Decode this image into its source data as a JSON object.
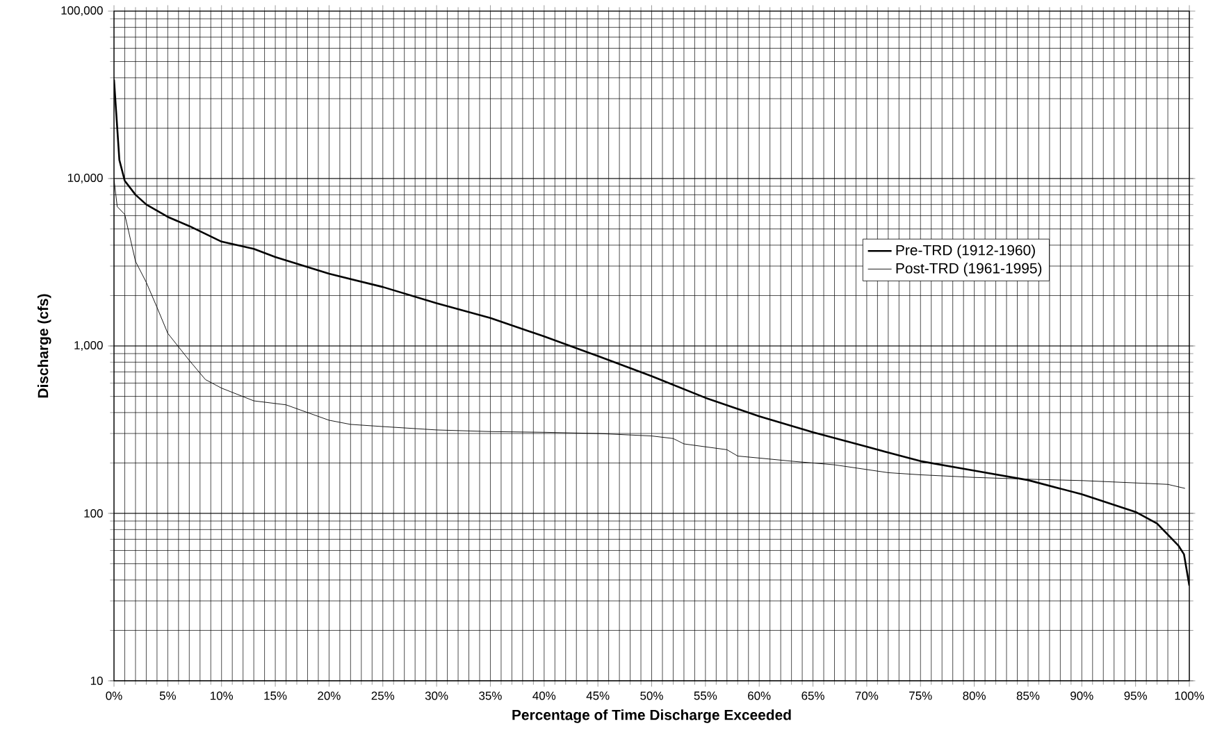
{
  "chart_data": {
    "type": "line",
    "xlabel": "Percentage of Time Discharge Exceeded",
    "ylabel": "Discharge (cfs)",
    "log": "y",
    "grid": true,
    "legend": "right",
    "marker": "none",
    "line_style": "solid",
    "xlim": [
      0,
      100
    ],
    "ylim": [
      10,
      100000
    ],
    "xticks": [
      {
        "value": 0,
        "label": "0%"
      },
      {
        "value": 5,
        "label": "5%"
      },
      {
        "value": 10,
        "label": "10%"
      },
      {
        "value": 15,
        "label": "15%"
      },
      {
        "value": 20,
        "label": "20%"
      },
      {
        "value": 25,
        "label": "25%"
      },
      {
        "value": 30,
        "label": "30%"
      },
      {
        "value": 35,
        "label": "35%"
      },
      {
        "value": 40,
        "label": "40%"
      },
      {
        "value": 45,
        "label": "45%"
      },
      {
        "value": 50,
        "label": "50%"
      },
      {
        "value": 55,
        "label": "55%"
      },
      {
        "value": 60,
        "label": "60%"
      },
      {
        "value": 65,
        "label": "65%"
      },
      {
        "value": 70,
        "label": "70%"
      },
      {
        "value": 75,
        "label": "75%"
      },
      {
        "value": 80,
        "label": "80%"
      },
      {
        "value": 85,
        "label": "85%"
      },
      {
        "value": 90,
        "label": "90%"
      },
      {
        "value": 95,
        "label": "95%"
      },
      {
        "value": 100,
        "label": "100%"
      }
    ],
    "yticks": [
      10,
      100,
      {
        "value": 1000,
        "label": "1,000"
      },
      {
        "value": 10000,
        "label": "10,000"
      },
      {
        "value": 100000,
        "label": "100,000"
      }
    ],
    "series": [
      {
        "name": "Pre-TRD (1912-1960)",
        "color": "#000000",
        "x": [
          0,
          0.5,
          1,
          2,
          3,
          5,
          7,
          10,
          13,
          15,
          20,
          25,
          30,
          35,
          40,
          45,
          50,
          55,
          60,
          65,
          70,
          75,
          80,
          85,
          90,
          95,
          97,
          99,
          99.5,
          100
        ],
        "values": [
          39000,
          12900,
          9700,
          8000,
          7000,
          5900,
          5200,
          4200,
          3800,
          3400,
          2700,
          2250,
          1800,
          1470,
          1140,
          870,
          660,
          490,
          380,
          305,
          250,
          205,
          180,
          158,
          130,
          102,
          87,
          64,
          57,
          37
        ]
      },
      {
        "name": "Post-TRD (1961-1995)",
        "color": "#000000",
        "x": [
          0,
          0.3,
          1,
          2,
          3,
          4,
          5,
          7,
          8.5,
          10,
          13,
          16,
          18,
          20,
          22,
          25,
          30,
          35,
          40,
          45,
          50,
          52,
          53,
          57,
          58,
          60,
          63,
          67,
          72,
          75,
          80,
          85,
          90,
          95,
          98,
          99.6
        ],
        "values": [
          9900,
          6800,
          6100,
          3200,
          2400,
          1700,
          1190,
          820,
          630,
          560,
          470,
          445,
          400,
          360,
          340,
          330,
          315,
          308,
          305,
          300,
          290,
          280,
          260,
          240,
          220,
          214,
          205,
          195,
          175,
          170,
          164,
          160,
          157,
          152,
          149,
          141
        ]
      }
    ]
  }
}
